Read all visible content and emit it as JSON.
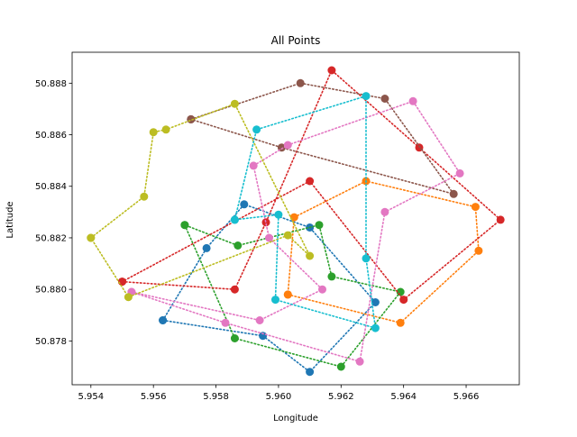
{
  "chart_data": {
    "type": "scatter",
    "title": "All Points",
    "xlabel": "Longitude",
    "ylabel": "Latitude",
    "xlim": [
      5.9534,
      5.9677
    ],
    "ylim": [
      50.8763,
      50.8892
    ],
    "xticks": [
      "5.954",
      "5.956",
      "5.958",
      "5.960",
      "5.962",
      "5.964",
      "5.966"
    ],
    "xtick_values": [
      5.954,
      5.956,
      5.958,
      5.96,
      5.962,
      5.964,
      5.966
    ],
    "yticks": [
      "50.878",
      "50.880",
      "50.882",
      "50.884",
      "50.886",
      "50.888"
    ],
    "ytick_values": [
      50.878,
      50.88,
      50.882,
      50.884,
      50.886,
      50.888
    ],
    "grid": false,
    "line_style": "dotted",
    "series": [
      {
        "color": "#1f77b4",
        "points": [
          [
            5.9563,
            50.8788
          ],
          [
            5.9595,
            50.8782
          ],
          [
            5.961,
            50.8768
          ],
          [
            5.9631,
            50.8795
          ],
          [
            5.961,
            50.8824
          ],
          [
            5.9589,
            50.8833
          ],
          [
            5.9577,
            50.8816
          ],
          [
            5.9563,
            50.8788
          ]
        ]
      },
      {
        "color": "#ff7f0e",
        "points": [
          [
            5.9603,
            50.8798
          ],
          [
            5.9639,
            50.8787
          ],
          [
            5.9664,
            50.8815
          ],
          [
            5.9663,
            50.8832
          ],
          [
            5.9628,
            50.8842
          ],
          [
            5.9605,
            50.8828
          ],
          [
            5.9603,
            50.8798
          ]
        ]
      },
      {
        "color": "#2ca02c",
        "points": [
          [
            5.957,
            50.8825
          ],
          [
            5.9586,
            50.8781
          ],
          [
            5.962,
            50.877
          ],
          [
            5.9639,
            50.8799
          ],
          [
            5.9617,
            50.8805
          ],
          [
            5.9613,
            50.8825
          ],
          [
            5.9587,
            50.8817
          ],
          [
            5.957,
            50.8825
          ]
        ]
      },
      {
        "color": "#d62728",
        "points": [
          [
            5.955,
            50.8803
          ],
          [
            5.9586,
            50.88
          ],
          [
            5.9596,
            50.8826
          ],
          [
            5.9617,
            50.8885
          ],
          [
            5.9645,
            50.8855
          ],
          [
            5.9671,
            50.8827
          ],
          [
            5.964,
            50.8796
          ],
          [
            5.961,
            50.8842
          ],
          [
            5.955,
            50.8803
          ]
        ]
      },
      {
        "color": "#9467bd",
        "points": []
      },
      {
        "color": "#8c564b",
        "points": [
          [
            5.9572,
            50.8866
          ],
          [
            5.9607,
            50.888
          ],
          [
            5.9634,
            50.8874
          ],
          [
            5.9656,
            50.8837
          ],
          [
            5.9601,
            50.8855
          ],
          [
            5.9572,
            50.8866
          ]
        ]
      },
      {
        "color": "#e377c2",
        "points": [
          [
            5.9553,
            50.8799
          ],
          [
            5.9583,
            50.8787
          ],
          [
            5.9626,
            50.8772
          ],
          [
            5.9634,
            50.883
          ],
          [
            5.9658,
            50.8845
          ],
          [
            5.9643,
            50.8873
          ],
          [
            5.9603,
            50.8856
          ],
          [
            5.9592,
            50.8848
          ],
          [
            5.9597,
            50.882
          ],
          [
            5.9614,
            50.88
          ],
          [
            5.9594,
            50.8788
          ],
          [
            5.9553,
            50.8799
          ]
        ]
      },
      {
        "color": "#bcbd22",
        "points": [
          [
            5.954,
            50.882
          ],
          [
            5.9557,
            50.8836
          ],
          [
            5.956,
            50.8861
          ],
          [
            5.9564,
            50.8862
          ],
          [
            5.9586,
            50.8872
          ],
          [
            5.961,
            50.8813
          ],
          [
            5.9603,
            50.8821
          ],
          [
            5.9552,
            50.8797
          ],
          [
            5.954,
            50.882
          ]
        ]
      },
      {
        "color": "#17becf",
        "points": [
          [
            5.9586,
            50.8827
          ],
          [
            5.9593,
            50.8862
          ],
          [
            5.9628,
            50.8875
          ],
          [
            5.9628,
            50.8812
          ],
          [
            5.9631,
            50.8785
          ],
          [
            5.9599,
            50.8796
          ],
          [
            5.96,
            50.8829
          ],
          [
            5.9586,
            50.8827
          ]
        ]
      },
      {
        "color": "#7f7f7f",
        "points": []
      }
    ]
  }
}
